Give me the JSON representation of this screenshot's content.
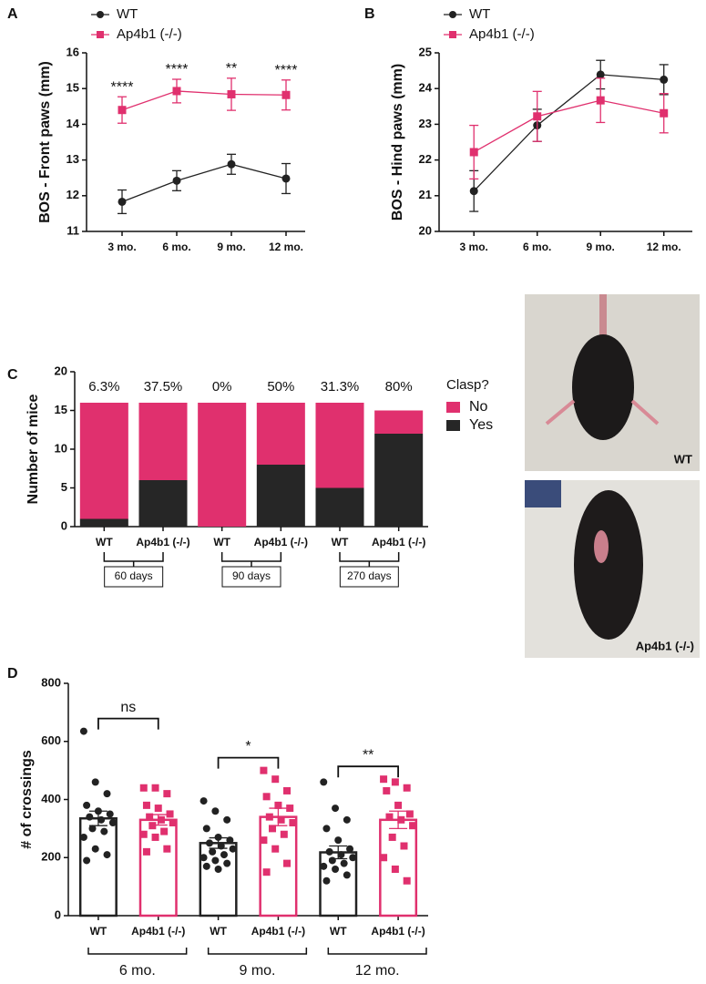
{
  "chart_data": [
    {
      "type": "line",
      "panel": "A",
      "ylabel": "BOS - Front paws (mm)",
      "categories": [
        "3 mo.",
        "6 mo.",
        "9 mo.",
        "12 mo."
      ],
      "series": [
        {
          "name": "WT",
          "color": "#222222",
          "marker": "circle",
          "values": [
            11.83,
            12.42,
            12.88,
            12.48
          ],
          "errors": [
            0.33,
            0.28,
            0.28,
            0.42
          ]
        },
        {
          "name": "Ap4b1 (-/-)",
          "color": "#e0306e",
          "marker": "square",
          "values": [
            14.4,
            14.93,
            14.84,
            14.82
          ],
          "errors": [
            0.37,
            0.33,
            0.45,
            0.42
          ]
        }
      ],
      "significance": [
        "****",
        "****",
        "**",
        "****"
      ],
      "ylim": [
        11,
        16
      ],
      "yticks": [
        11,
        12,
        13,
        14,
        15,
        16
      ]
    },
    {
      "type": "line",
      "panel": "B",
      "ylabel": "BOS - Hind paws (mm)",
      "categories": [
        "3 mo.",
        "6 mo.",
        "9 mo.",
        "12 mo."
      ],
      "series": [
        {
          "name": "WT",
          "color": "#222222",
          "marker": "circle",
          "values": [
            21.13,
            22.97,
            24.39,
            24.25
          ],
          "errors": [
            0.57,
            0.45,
            0.4,
            0.42
          ]
        },
        {
          "name": "Ap4b1 (-/-)",
          "color": "#e0306e",
          "marker": "square",
          "values": [
            22.22,
            23.22,
            23.67,
            23.31
          ],
          "errors": [
            0.75,
            0.7,
            0.62,
            0.55
          ]
        }
      ],
      "ylim": [
        20,
        25
      ],
      "yticks": [
        20,
        21,
        22,
        23,
        24,
        25
      ]
    },
    {
      "type": "stacked_bar",
      "panel": "C",
      "ylabel": "Number of mice",
      "legend_title": "Clasp?",
      "categories": [
        "WT",
        "Ap4b1 (-/-)",
        "WT",
        "Ap4b1 (-/-)",
        "WT",
        "Ap4b1 (-/-)"
      ],
      "series": [
        {
          "name": "No",
          "color": "#e0306e",
          "values": [
            15,
            10,
            16,
            8,
            11,
            3
          ]
        },
        {
          "name": "Yes",
          "color": "#262626",
          "values": [
            1,
            6,
            0,
            8,
            5,
            12
          ]
        }
      ],
      "top_labels": {
        "values": [
          6.3,
          37.5,
          0,
          50,
          31.3,
          80
        ],
        "value_labels": [
          "6.3%",
          "37.5%",
          "0%",
          "50%",
          "31.3%",
          "80%"
        ]
      },
      "groups": [
        "60 days",
        "90 days",
        "270 days"
      ],
      "ylim": [
        0,
        20
      ],
      "yticks": [
        0,
        5,
        10,
        15,
        20
      ]
    },
    {
      "type": "bar",
      "panel": "D",
      "ylabel": "# of crossings",
      "categories": [
        "WT",
        "Ap4b1 (-/-)",
        "WT",
        "Ap4b1 (-/-)",
        "WT",
        "Ap4b1 (-/-)"
      ],
      "colors": [
        "#222222",
        "#e0306e",
        "#222222",
        "#e0306e",
        "#222222",
        "#e0306e"
      ],
      "values": [
        335,
        330,
        250,
        340,
        218,
        330
      ],
      "errors": [
        25,
        18,
        18,
        30,
        22,
        30
      ],
      "points": [
        [
          635,
          460,
          420,
          380,
          360,
          350,
          340,
          330,
          320,
          300,
          290,
          270,
          230,
          210,
          190
        ],
        [
          440,
          440,
          420,
          380,
          370,
          350,
          340,
          330,
          320,
          310,
          290,
          280,
          270,
          230,
          220
        ],
        [
          395,
          360,
          330,
          300,
          270,
          260,
          250,
          240,
          230,
          220,
          210,
          200,
          190,
          180,
          170,
          160
        ],
        [
          500,
          470,
          430,
          410,
          380,
          370,
          340,
          330,
          320,
          300,
          280,
          260,
          230,
          180,
          150
        ],
        [
          460,
          370,
          330,
          300,
          260,
          230,
          220,
          210,
          200,
          190,
          180,
          170,
          160,
          140,
          120
        ],
        [
          470,
          460,
          440,
          430,
          380,
          350,
          340,
          330,
          310,
          270,
          240,
          200,
          160,
          120
        ]
      ],
      "groups": [
        "6 mo.",
        "9 mo.",
        "12 mo."
      ],
      "significance": [
        "ns",
        "*",
        "**"
      ],
      "ylim": [
        0,
        800
      ],
      "yticks": [
        0,
        200,
        400,
        600,
        800
      ]
    }
  ],
  "photos": [
    {
      "label": "WT"
    },
    {
      "label": "Ap4b1 (-/-)"
    }
  ]
}
